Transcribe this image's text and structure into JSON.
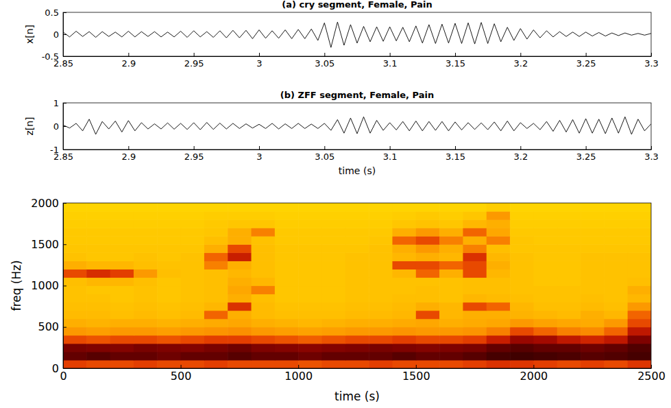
{
  "chart_data": [
    {
      "type": "line",
      "title": "(a) cry segment, Female, Pain",
      "y_label": "x[n]",
      "color": "#000000",
      "xlim": [
        2.85,
        3.3
      ],
      "xticks": [
        2.85,
        2.9,
        2.95,
        3,
        3.05,
        3.1,
        3.15,
        3.2,
        3.25,
        3.3
      ],
      "ylim": [
        -0.5,
        0.5
      ],
      "yticks": [
        -0.5,
        0,
        0.5
      ],
      "x": [
        2.85,
        2.855,
        2.86,
        2.865,
        2.87,
        2.875,
        2.88,
        2.885,
        2.89,
        2.895,
        2.9,
        2.905,
        2.91,
        2.915,
        2.92,
        2.925,
        2.93,
        2.935,
        2.94,
        2.945,
        2.95,
        2.955,
        2.96,
        2.965,
        2.97,
        2.975,
        2.98,
        2.985,
        2.99,
        2.995,
        3,
        3.005,
        3.01,
        3.015,
        3.02,
        3.025,
        3.03,
        3.035,
        3.04,
        3.045,
        3.05,
        3.055,
        3.06,
        3.065,
        3.07,
        3.075,
        3.08,
        3.085,
        3.09,
        3.095,
        3.1,
        3.105,
        3.11,
        3.115,
        3.12,
        3.125,
        3.13,
        3.135,
        3.14,
        3.145,
        3.15,
        3.155,
        3.16,
        3.165,
        3.17,
        3.175,
        3.18,
        3.185,
        3.19,
        3.195,
        3.2,
        3.205,
        3.21,
        3.215,
        3.22,
        3.225,
        3.23,
        3.235,
        3.24,
        3.245,
        3.25,
        3.255,
        3.26,
        3.265,
        3.27,
        3.275,
        3.28,
        3.285,
        3.29,
        3.295,
        3.3
      ],
      "values": [
        0.05,
        -0.06,
        0.07,
        -0.05,
        0.06,
        -0.07,
        0.06,
        -0.05,
        0.05,
        -0.06,
        0.07,
        -0.06,
        0.06,
        -0.05,
        0.06,
        -0.06,
        0.05,
        -0.06,
        0.07,
        -0.07,
        0.08,
        -0.06,
        0.06,
        -0.07,
        0.08,
        -0.08,
        0.09,
        -0.08,
        0.09,
        -0.1,
        0.1,
        -0.09,
        0.08,
        -0.09,
        0.1,
        -0.1,
        0.11,
        -0.1,
        0.12,
        -0.14,
        0.26,
        -0.3,
        0.28,
        -0.25,
        0.22,
        -0.2,
        0.18,
        -0.17,
        0.17,
        -0.16,
        0.17,
        -0.15,
        0.16,
        -0.17,
        0.19,
        -0.2,
        0.22,
        -0.21,
        0.23,
        -0.2,
        0.25,
        -0.21,
        0.26,
        -0.22,
        0.27,
        -0.21,
        0.24,
        -0.17,
        0.16,
        -0.14,
        0.13,
        -0.11,
        0.1,
        -0.08,
        0.08,
        -0.06,
        0.06,
        -0.05,
        0.05,
        -0.05,
        0.05,
        -0.04,
        0.04,
        -0.04,
        0.03,
        -0.03,
        0.03,
        -0.02,
        0.02,
        -0.02,
        0.02
      ]
    },
    {
      "type": "line",
      "title": "(b) ZFF segment, Female, Pain",
      "x_label": "time (s)",
      "y_label": "z[n]",
      "color": "#000000",
      "xlim": [
        2.85,
        3.3
      ],
      "xticks": [
        2.85,
        2.9,
        2.95,
        3,
        3.05,
        3.1,
        3.15,
        3.2,
        3.25,
        3.3
      ],
      "ylim": [
        -1,
        1
      ],
      "yticks": [
        -1,
        0,
        1
      ],
      "x": [
        2.85,
        2.855,
        2.86,
        2.865,
        2.87,
        2.875,
        2.88,
        2.885,
        2.89,
        2.895,
        2.9,
        2.905,
        2.91,
        2.915,
        2.92,
        2.925,
        2.93,
        2.935,
        2.94,
        2.945,
        2.95,
        2.955,
        2.96,
        2.965,
        2.97,
        2.975,
        2.98,
        2.985,
        2.99,
        2.995,
        3,
        3.005,
        3.01,
        3.015,
        3.02,
        3.025,
        3.03,
        3.035,
        3.04,
        3.045,
        3.05,
        3.055,
        3.06,
        3.065,
        3.07,
        3.075,
        3.08,
        3.085,
        3.09,
        3.095,
        3.1,
        3.105,
        3.11,
        3.115,
        3.12,
        3.125,
        3.13,
        3.135,
        3.14,
        3.145,
        3.15,
        3.155,
        3.16,
        3.165,
        3.17,
        3.175,
        3.18,
        3.185,
        3.19,
        3.195,
        3.2,
        3.205,
        3.21,
        3.215,
        3.22,
        3.225,
        3.23,
        3.235,
        3.24,
        3.245,
        3.25,
        3.255,
        3.26,
        3.265,
        3.27,
        3.275,
        3.28,
        3.285,
        3.29,
        3.295,
        3.3
      ],
      "values": [
        0.05,
        -0.08,
        0.12,
        -0.2,
        0.3,
        -0.35,
        0.2,
        -0.12,
        0.22,
        -0.25,
        0.24,
        -0.2,
        0.15,
        -0.12,
        0.1,
        -0.12,
        0.14,
        -0.13,
        0.12,
        -0.14,
        0.15,
        -0.15,
        0.16,
        -0.14,
        0.13,
        -0.12,
        0.12,
        -0.1,
        0.1,
        -0.08,
        0.08,
        -0.1,
        0.12,
        -0.12,
        0.1,
        -0.1,
        0.12,
        -0.1,
        0.09,
        -0.1,
        0.12,
        -0.18,
        0.28,
        -0.3,
        0.35,
        -0.32,
        0.4,
        -0.3,
        0.25,
        -0.18,
        0.15,
        -0.16,
        0.2,
        -0.2,
        0.22,
        -0.2,
        0.2,
        -0.18,
        0.2,
        -0.2,
        0.18,
        -0.16,
        0.15,
        -0.14,
        0.14,
        -0.15,
        0.18,
        -0.2,
        0.22,
        -0.2,
        0.15,
        -0.1,
        0.12,
        -0.15,
        0.2,
        -0.22,
        0.25,
        -0.25,
        0.28,
        -0.3,
        0.32,
        -0.3,
        0.3,
        -0.32,
        0.35,
        -0.3,
        0.4,
        -0.35,
        0.3,
        -0.2,
        0.1
      ]
    },
    {
      "type": "heatmap",
      "x_label": "time (s)",
      "y_label": "freq (Hz)",
      "xlim": [
        0,
        2500
      ],
      "xticks": [
        0,
        500,
        1000,
        1500,
        2000,
        2500
      ],
      "ylim": [
        0,
        2000
      ],
      "yticks": [
        0,
        500,
        1000,
        1500,
        2000
      ],
      "x": [
        50,
        150,
        250,
        350,
        450,
        550,
        650,
        750,
        850,
        950,
        1050,
        1150,
        1250,
        1350,
        1450,
        1550,
        1650,
        1750,
        1850,
        1950,
        2050,
        2150,
        2250,
        2350,
        2450
      ],
      "y": [
        50,
        150,
        250,
        350,
        450,
        550,
        650,
        750,
        850,
        950,
        1050,
        1150,
        1250,
        1350,
        1450,
        1550,
        1650,
        1750,
        1850,
        1950
      ],
      "z": [
        [
          0.62,
          0.6,
          0.6,
          0.62,
          0.6,
          0.6,
          0.62,
          0.6,
          0.6,
          0.6,
          0.58,
          0.6,
          0.6,
          0.62,
          0.6,
          0.6,
          0.6,
          0.62,
          0.65,
          0.64,
          0.62,
          0.6,
          0.62,
          0.6,
          0.64
        ],
        [
          0.9,
          0.92,
          0.9,
          0.9,
          0.88,
          0.9,
          0.9,
          0.92,
          0.9,
          0.9,
          0.88,
          0.9,
          0.9,
          0.9,
          0.92,
          0.9,
          0.9,
          0.92,
          0.95,
          0.96,
          0.95,
          0.94,
          0.92,
          0.93,
          0.95
        ],
        [
          0.86,
          0.85,
          0.84,
          0.86,
          0.85,
          0.84,
          0.86,
          0.88,
          0.85,
          0.84,
          0.83,
          0.84,
          0.85,
          0.86,
          0.85,
          0.84,
          0.85,
          0.86,
          0.9,
          0.92,
          0.9,
          0.9,
          0.88,
          0.9,
          0.93
        ],
        [
          0.6,
          0.58,
          0.6,
          0.6,
          0.58,
          0.6,
          0.62,
          0.62,
          0.6,
          0.58,
          0.56,
          0.58,
          0.6,
          0.6,
          0.62,
          0.6,
          0.6,
          0.62,
          0.7,
          0.8,
          0.78,
          0.72,
          0.68,
          0.72,
          0.85
        ],
        [
          0.45,
          0.44,
          0.45,
          0.45,
          0.44,
          0.45,
          0.46,
          0.47,
          0.45,
          0.44,
          0.43,
          0.44,
          0.45,
          0.45,
          0.46,
          0.45,
          0.45,
          0.46,
          0.5,
          0.6,
          0.55,
          0.5,
          0.48,
          0.55,
          0.72
        ],
        [
          0.4,
          0.39,
          0.4,
          0.4,
          0.39,
          0.4,
          0.41,
          0.42,
          0.4,
          0.39,
          0.38,
          0.39,
          0.4,
          0.4,
          0.41,
          0.42,
          0.4,
          0.41,
          0.42,
          0.45,
          0.43,
          0.42,
          0.41,
          0.45,
          0.6
        ],
        [
          0.37,
          0.37,
          0.36,
          0.37,
          0.36,
          0.37,
          0.55,
          0.4,
          0.37,
          0.36,
          0.36,
          0.36,
          0.37,
          0.37,
          0.38,
          0.6,
          0.38,
          0.4,
          0.4,
          0.39,
          0.38,
          0.37,
          0.4,
          0.38,
          0.55
        ],
        [
          0.36,
          0.36,
          0.35,
          0.36,
          0.35,
          0.36,
          0.38,
          0.65,
          0.37,
          0.35,
          0.35,
          0.35,
          0.36,
          0.36,
          0.37,
          0.4,
          0.38,
          0.6,
          0.55,
          0.38,
          0.36,
          0.36,
          0.37,
          0.36,
          0.45
        ],
        [
          0.35,
          0.35,
          0.34,
          0.35,
          0.34,
          0.35,
          0.36,
          0.4,
          0.36,
          0.34,
          0.34,
          0.34,
          0.35,
          0.35,
          0.36,
          0.36,
          0.35,
          0.38,
          0.37,
          0.36,
          0.35,
          0.35,
          0.36,
          0.35,
          0.38
        ],
        [
          0.35,
          0.34,
          0.34,
          0.35,
          0.34,
          0.35,
          0.36,
          0.42,
          0.5,
          0.34,
          0.34,
          0.34,
          0.35,
          0.35,
          0.35,
          0.36,
          0.35,
          0.36,
          0.36,
          0.35,
          0.35,
          0.35,
          0.35,
          0.35,
          0.4
        ],
        [
          0.36,
          0.38,
          0.38,
          0.36,
          0.34,
          0.35,
          0.36,
          0.4,
          0.38,
          0.34,
          0.34,
          0.34,
          0.35,
          0.35,
          0.35,
          0.35,
          0.35,
          0.36,
          0.36,
          0.35,
          0.34,
          0.34,
          0.35,
          0.35,
          0.36
        ],
        [
          0.6,
          0.66,
          0.62,
          0.45,
          0.36,
          0.35,
          0.36,
          0.38,
          0.36,
          0.34,
          0.34,
          0.34,
          0.35,
          0.35,
          0.38,
          0.55,
          0.4,
          0.6,
          0.38,
          0.35,
          0.34,
          0.34,
          0.35,
          0.35,
          0.35
        ],
        [
          0.4,
          0.38,
          0.38,
          0.36,
          0.35,
          0.35,
          0.5,
          0.4,
          0.36,
          0.34,
          0.34,
          0.34,
          0.35,
          0.35,
          0.6,
          0.6,
          0.55,
          0.6,
          0.4,
          0.35,
          0.34,
          0.34,
          0.35,
          0.35,
          0.35
        ],
        [
          0.35,
          0.34,
          0.34,
          0.35,
          0.34,
          0.35,
          0.55,
          0.7,
          0.36,
          0.34,
          0.34,
          0.34,
          0.35,
          0.35,
          0.38,
          0.4,
          0.38,
          0.65,
          0.38,
          0.35,
          0.34,
          0.34,
          0.35,
          0.35,
          0.35
        ],
        [
          0.34,
          0.34,
          0.34,
          0.34,
          0.34,
          0.34,
          0.4,
          0.6,
          0.36,
          0.34,
          0.34,
          0.34,
          0.34,
          0.35,
          0.4,
          0.45,
          0.4,
          0.5,
          0.36,
          0.34,
          0.34,
          0.34,
          0.34,
          0.34,
          0.34
        ],
        [
          0.33,
          0.33,
          0.33,
          0.33,
          0.33,
          0.33,
          0.36,
          0.4,
          0.35,
          0.33,
          0.33,
          0.33,
          0.33,
          0.34,
          0.55,
          0.6,
          0.5,
          0.4,
          0.5,
          0.34,
          0.33,
          0.33,
          0.33,
          0.33,
          0.33
        ],
        [
          0.33,
          0.33,
          0.33,
          0.33,
          0.33,
          0.33,
          0.34,
          0.4,
          0.5,
          0.33,
          0.33,
          0.33,
          0.33,
          0.33,
          0.4,
          0.45,
          0.4,
          0.55,
          0.42,
          0.33,
          0.33,
          0.33,
          0.33,
          0.33,
          0.33
        ],
        [
          0.32,
          0.32,
          0.32,
          0.32,
          0.32,
          0.32,
          0.33,
          0.34,
          0.34,
          0.32,
          0.32,
          0.32,
          0.32,
          0.32,
          0.34,
          0.35,
          0.34,
          0.38,
          0.4,
          0.32,
          0.32,
          0.32,
          0.32,
          0.32,
          0.32
        ],
        [
          0.31,
          0.31,
          0.31,
          0.31,
          0.31,
          0.31,
          0.32,
          0.32,
          0.32,
          0.31,
          0.31,
          0.31,
          0.31,
          0.31,
          0.32,
          0.33,
          0.32,
          0.34,
          0.45,
          0.31,
          0.31,
          0.31,
          0.31,
          0.31,
          0.31
        ],
        [
          0.3,
          0.3,
          0.3,
          0.3,
          0.3,
          0.3,
          0.3,
          0.3,
          0.3,
          0.3,
          0.3,
          0.3,
          0.3,
          0.3,
          0.3,
          0.3,
          0.3,
          0.3,
          0.32,
          0.3,
          0.3,
          0.3,
          0.3,
          0.3,
          0.3
        ]
      ]
    }
  ]
}
